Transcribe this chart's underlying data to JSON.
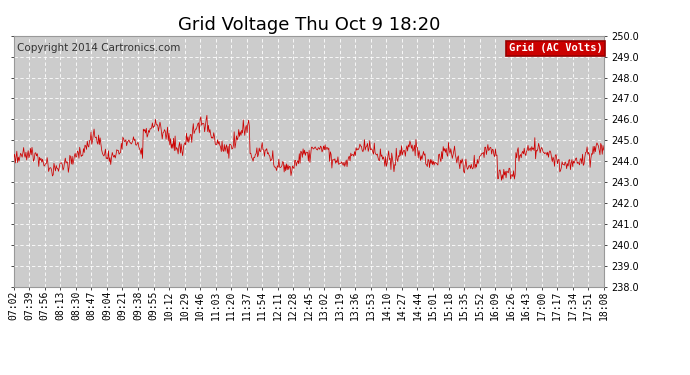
{
  "title": "Grid Voltage Thu Oct 9 18:20",
  "copyright": "Copyright 2014 Cartronics.com",
  "legend_label": "Grid (AC Volts)",
  "legend_bg": "#cc0000",
  "legend_fg": "#ffffff",
  "line_color": "#cc0000",
  "bg_color": "#ffffff",
  "plot_bg": "#cccccc",
  "grid_color": "#ffffff",
  "ylim": [
    238.0,
    250.0
  ],
  "yticks": [
    238.0,
    239.0,
    240.0,
    241.0,
    242.0,
    243.0,
    244.0,
    245.0,
    246.0,
    247.0,
    248.0,
    249.0,
    250.0
  ],
  "xtick_labels": [
    "07:02",
    "07:39",
    "07:56",
    "08:13",
    "08:30",
    "08:47",
    "09:04",
    "09:21",
    "09:38",
    "09:55",
    "10:12",
    "10:29",
    "10:46",
    "11:03",
    "11:20",
    "11:37",
    "11:54",
    "12:11",
    "12:28",
    "12:45",
    "13:02",
    "13:19",
    "13:36",
    "13:53",
    "14:10",
    "14:27",
    "14:44",
    "15:01",
    "15:18",
    "15:35",
    "15:52",
    "16:09",
    "16:26",
    "16:43",
    "17:00",
    "17:17",
    "17:34",
    "17:51",
    "18:08"
  ],
  "seed": 12345,
  "n_points": 780,
  "base_voltage": 244.3,
  "title_fontsize": 13,
  "tick_fontsize": 7,
  "copyright_fontsize": 7.5
}
